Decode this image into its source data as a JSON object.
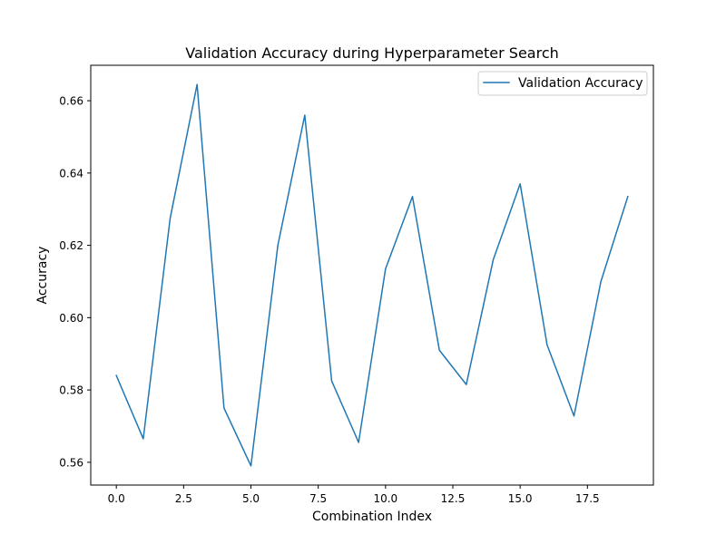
{
  "chart_data": {
    "type": "line",
    "title": "Validation Accuracy during Hyperparameter Search",
    "xlabel": "Combination Index",
    "ylabel": "Accuracy",
    "xlim": [
      -0.95,
      19.95
    ],
    "ylim": [
      0.5537,
      0.6698
    ],
    "x_ticks": [
      0.0,
      2.5,
      5.0,
      7.5,
      10.0,
      12.5,
      15.0,
      17.5
    ],
    "x_tick_labels": [
      "0.0",
      "2.5",
      "5.0",
      "7.5",
      "10.0",
      "12.5",
      "15.0",
      "17.5"
    ],
    "y_ticks": [
      0.56,
      0.58,
      0.6,
      0.62,
      0.64,
      0.66
    ],
    "y_tick_labels": [
      "0.56",
      "0.58",
      "0.60",
      "0.62",
      "0.64",
      "0.66"
    ],
    "grid": false,
    "legend_position": "top-right",
    "series": [
      {
        "name": "Validation Accuracy",
        "color": "#1f77b4",
        "x": [
          0,
          1,
          2,
          3,
          4,
          5,
          6,
          7,
          8,
          9,
          10,
          11,
          12,
          13,
          14,
          15,
          16,
          17,
          18,
          19
        ],
        "values": [
          0.584,
          0.5665,
          0.6275,
          0.6645,
          0.575,
          0.559,
          0.62,
          0.656,
          0.5825,
          0.5655,
          0.6135,
          0.6335,
          0.591,
          0.5815,
          0.616,
          0.637,
          0.5925,
          0.5728,
          0.61,
          0.6335
        ]
      }
    ]
  }
}
